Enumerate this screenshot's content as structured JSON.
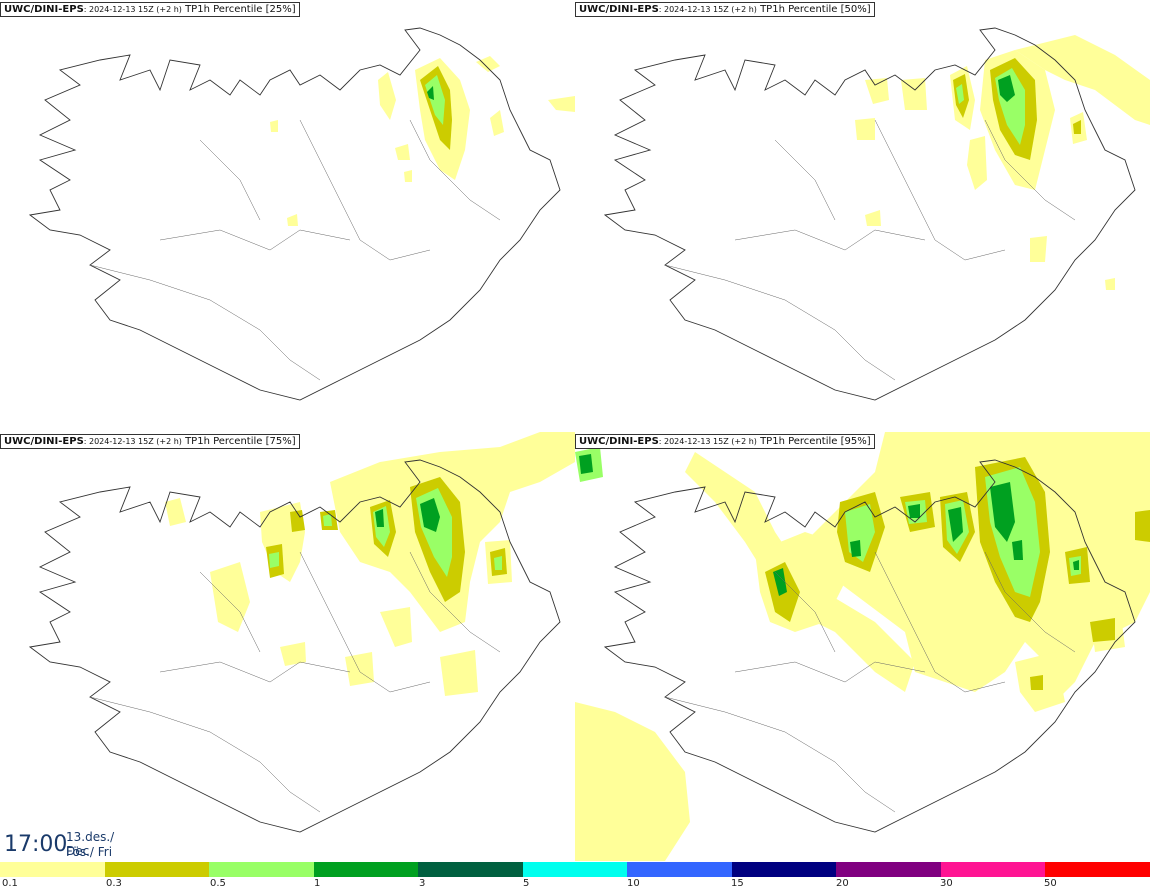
{
  "panels": [
    {
      "model": "UWC/DINI-EPS",
      "run": ": 2024-12-13 15Z (+2 h)",
      "field": " TP1h Percentile [25%]"
    },
    {
      "model": "UWC/DINI-EPS",
      "run": ": 2024-12-13 15Z (+2 h)",
      "field": " TP1h Percentile [50%]"
    },
    {
      "model": "UWC/DINI-EPS",
      "run": ": 2024-12-13 15Z (+2 h)",
      "field": " TP1h Percentile [75%]"
    },
    {
      "model": "UWC/DINI-EPS",
      "run": ": 2024-12-13 15Z (+2 h)",
      "field": " TP1h Percentile [95%]"
    }
  ],
  "timestamp": {
    "time": "17:00",
    "date_line1": "13.des./ Dec",
    "date_line2": "Fös./ Fri"
  },
  "legend": {
    "colors": [
      "#ffff99",
      "#cccc00",
      "#99ff66",
      "#00a020",
      "#006040",
      "#00ffee",
      "#3366ff",
      "#000080",
      "#800080",
      "#ff1493",
      "#ff0000"
    ],
    "labels": [
      "0.1",
      "0.3",
      "0.5",
      "1",
      "3",
      "5",
      "10",
      "15",
      "20",
      "30",
      "50"
    ]
  }
}
